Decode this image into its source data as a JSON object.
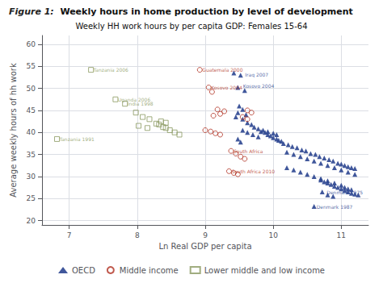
{
  "chart_data": {
    "type": "scatter",
    "title_prefix": "Figure 1:",
    "title": "  Weekly hours in home production by level of development",
    "subtitle": "Weekly HH work hours by per capita GDP: Females 15-64",
    "xlabel": "Ln Real GDP per capita",
    "ylabel": "Average weekly hours of hh work",
    "xlim": [
      6.6,
      11.4
    ],
    "ylim": [
      19,
      62
    ],
    "xticks": [
      7,
      8,
      9,
      10,
      11
    ],
    "yticks": [
      20,
      25,
      30,
      35,
      40,
      45,
      50,
      55,
      60
    ],
    "grid": true,
    "legend": "bottom",
    "series": [
      {
        "name": "OECD",
        "color": "#2b4590",
        "marker": "triangle",
        "values": [
          [
            9.42,
            53.5
          ],
          [
            9.52,
            53.0
          ],
          [
            9.48,
            50.2
          ],
          [
            9.58,
            49.5
          ],
          [
            9.5,
            46.0
          ],
          [
            9.55,
            45.2
          ],
          [
            9.48,
            44.5
          ],
          [
            9.6,
            44.0
          ],
          [
            9.45,
            43.5
          ],
          [
            9.55,
            43.0
          ],
          [
            9.62,
            42.2
          ],
          [
            9.68,
            41.8
          ],
          [
            9.72,
            41.2
          ],
          [
            9.78,
            40.8
          ],
          [
            9.82,
            40.2
          ],
          [
            9.88,
            40.0
          ],
          [
            9.92,
            39.5
          ],
          [
            9.96,
            39.2
          ],
          [
            10.0,
            38.8
          ],
          [
            10.05,
            38.5
          ],
          [
            10.08,
            38.2
          ],
          [
            10.12,
            38.0
          ],
          [
            9.55,
            40.5
          ],
          [
            9.62,
            40.0
          ],
          [
            9.7,
            39.5
          ],
          [
            9.78,
            39.0
          ],
          [
            9.85,
            40.5
          ],
          [
            9.92,
            40.2
          ],
          [
            10.0,
            39.8
          ],
          [
            10.05,
            39.5
          ],
          [
            9.48,
            38.5
          ],
          [
            9.52,
            37.8
          ],
          [
            10.15,
            37.5
          ],
          [
            10.22,
            37.2
          ],
          [
            10.28,
            36.8
          ],
          [
            10.35,
            36.5
          ],
          [
            10.42,
            36.0
          ],
          [
            10.48,
            35.8
          ],
          [
            10.55,
            35.2
          ],
          [
            10.62,
            35.0
          ],
          [
            10.68,
            34.5
          ],
          [
            10.75,
            34.2
          ],
          [
            10.82,
            33.8
          ],
          [
            10.88,
            33.5
          ],
          [
            10.95,
            33.0
          ],
          [
            11.0,
            32.8
          ],
          [
            11.05,
            32.5
          ],
          [
            11.1,
            32.2
          ],
          [
            11.15,
            32.0
          ],
          [
            11.2,
            31.8
          ],
          [
            10.2,
            35.5
          ],
          [
            10.3,
            35.0
          ],
          [
            10.4,
            34.5
          ],
          [
            10.5,
            34.0
          ],
          [
            10.6,
            33.5
          ],
          [
            10.7,
            33.0
          ],
          [
            10.8,
            32.5
          ],
          [
            10.9,
            32.0
          ],
          [
            11.0,
            31.5
          ],
          [
            11.1,
            31.0
          ],
          [
            11.2,
            30.5
          ],
          [
            10.2,
            32.0
          ],
          [
            10.3,
            31.5
          ],
          [
            10.4,
            31.0
          ],
          [
            10.5,
            30.5
          ],
          [
            10.6,
            30.0
          ],
          [
            10.7,
            29.5
          ],
          [
            10.8,
            29.0
          ],
          [
            10.9,
            28.5
          ],
          [
            11.0,
            28.0
          ],
          [
            11.05,
            27.5
          ],
          [
            11.1,
            27.2
          ],
          [
            11.15,
            27.0
          ],
          [
            10.7,
            29.2
          ],
          [
            10.75,
            28.8
          ],
          [
            10.8,
            28.5
          ],
          [
            10.85,
            28.2
          ],
          [
            10.9,
            27.8
          ],
          [
            10.95,
            27.5
          ],
          [
            11.0,
            27.2
          ],
          [
            11.05,
            26.8
          ],
          [
            11.1,
            26.5
          ],
          [
            11.15,
            26.2
          ],
          [
            11.2,
            26.0
          ],
          [
            11.25,
            25.8
          ],
          [
            10.72,
            26.5
          ],
          [
            10.8,
            25.8
          ],
          [
            10.88,
            25.5
          ],
          [
            10.6,
            23.2
          ]
        ]
      },
      {
        "name": "Middle income",
        "color": "#b03020",
        "marker": "circle_open",
        "values": [
          [
            8.92,
            54.2
          ],
          [
            9.05,
            50.2
          ],
          [
            9.1,
            49.2
          ],
          [
            9.18,
            45.2
          ],
          [
            9.28,
            44.8
          ],
          [
            9.22,
            44.2
          ],
          [
            9.12,
            43.8
          ],
          [
            9.0,
            40.5
          ],
          [
            9.08,
            40.2
          ],
          [
            9.15,
            39.8
          ],
          [
            9.22,
            39.5
          ],
          [
            9.38,
            35.8
          ],
          [
            9.45,
            35.2
          ],
          [
            9.52,
            34.5
          ],
          [
            9.58,
            34.0
          ],
          [
            9.35,
            31.2
          ],
          [
            9.42,
            30.8
          ],
          [
            9.48,
            30.5
          ],
          [
            9.62,
            45.0
          ],
          [
            9.68,
            44.5
          ],
          [
            9.55,
            43.5
          ],
          [
            9.62,
            43.0
          ]
        ]
      },
      {
        "name": "Lower middle and low income",
        "color": "#8a9960",
        "marker": "square_open",
        "values": [
          [
            7.32,
            54.2
          ],
          [
            7.68,
            47.5
          ],
          [
            7.82,
            46.5
          ],
          [
            7.98,
            44.5
          ],
          [
            8.08,
            43.5
          ],
          [
            8.18,
            43.0
          ],
          [
            8.28,
            42.0
          ],
          [
            8.32,
            41.8
          ],
          [
            8.38,
            41.2
          ],
          [
            8.42,
            41.0
          ],
          [
            8.48,
            40.5
          ],
          [
            8.55,
            40.0
          ],
          [
            8.62,
            39.5
          ],
          [
            6.82,
            38.5
          ],
          [
            8.02,
            41.5
          ],
          [
            8.15,
            41.0
          ],
          [
            8.35,
            42.5
          ],
          [
            8.42,
            42.2
          ]
        ]
      }
    ],
    "annotations": [
      {
        "x": 9.55,
        "y": 53.2,
        "text": "Iraq 2007",
        "color": "#2b4590"
      },
      {
        "x": 9.52,
        "y": 50.5,
        "text": "Kosovo 2004",
        "color": "#2b4590"
      },
      {
        "x": 10.6,
        "y": 23.2,
        "text": "Denmark 1987",
        "color": "#2b4590"
      },
      {
        "x": 10.75,
        "y": 26.5,
        "text": "Denmark 1975",
        "color": "#2b4590"
      },
      {
        "x": 8.92,
        "y": 54.2,
        "text": "Guatemala 2000",
        "color": "#b03020"
      },
      {
        "x": 9.05,
        "y": 50.2,
        "text": "Kosovo 2004",
        "color": "#b03020"
      },
      {
        "x": 9.35,
        "y": 31.2,
        "text": "South Africa 2010",
        "color": "#b03020"
      },
      {
        "x": 9.38,
        "y": 35.8,
        "text": "South Africa",
        "color": "#b03020"
      },
      {
        "x": 7.32,
        "y": 54.2,
        "text": "Tanzania 2006",
        "color": "#8a9960"
      },
      {
        "x": 7.68,
        "y": 47.5,
        "text": "Uganda 2006",
        "color": "#8a9960"
      },
      {
        "x": 7.82,
        "y": 46.5,
        "text": "India 1998",
        "color": "#8a9960"
      },
      {
        "x": 6.82,
        "y": 38.5,
        "text": "Tanzania 1991",
        "color": "#8a9960"
      }
    ]
  }
}
